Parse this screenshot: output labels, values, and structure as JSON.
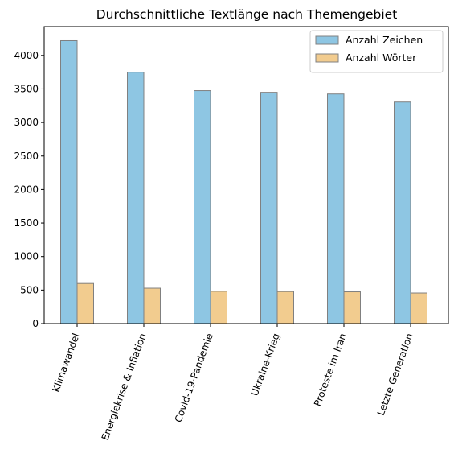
{
  "chart_data": {
    "type": "bar",
    "title": "Durchschnittliche Textlänge nach Themengebiet",
    "xlabel": "",
    "ylabel": "",
    "categories": [
      "Klimawandel",
      "Energiekrise & Inflation",
      "Covid-19-Pandemie",
      "Ukraine-Krieg",
      "Proteste im Iran",
      "Letzte Generation"
    ],
    "series": [
      {
        "name": "Anzahl Zeichen",
        "color": "#8ec6e3",
        "values": [
          4220,
          3750,
          3475,
          3450,
          3425,
          3305
        ]
      },
      {
        "name": "Anzahl Wörter",
        "color": "#f2cc8f",
        "values": [
          598,
          528,
          482,
          478,
          474,
          456
        ]
      }
    ],
    "ylim": [
      0,
      4430
    ],
    "yticks": [
      0,
      500,
      1000,
      1500,
      2000,
      2500,
      3000,
      3500,
      4000
    ],
    "grid": false,
    "legend_position": "top-right",
    "bar_edge_color": "#808080"
  }
}
